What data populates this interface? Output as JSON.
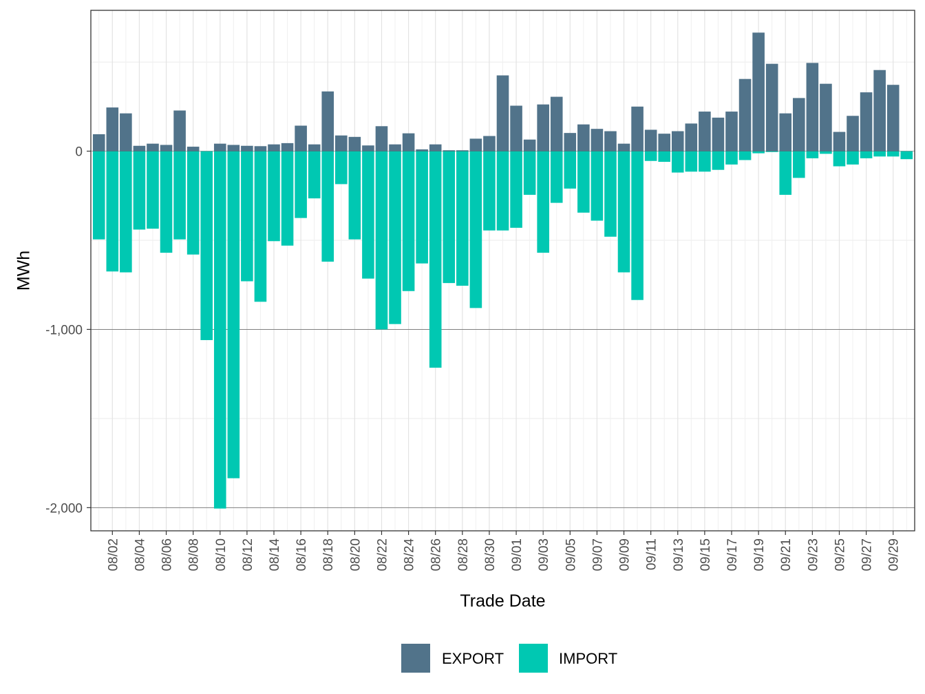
{
  "chart_data": {
    "type": "bar",
    "stacked": "diverging",
    "title": "",
    "xlabel": "Trade Date",
    "ylabel": "MWh",
    "ylim": [
      -2130,
      790
    ],
    "y_ticks": [
      {
        "value": 0,
        "label": "0"
      },
      {
        "value": -1000,
        "label": "-1,000"
      },
      {
        "value": -2000,
        "label": "-2,000"
      }
    ],
    "categories": [
      "08/01",
      "08/02",
      "08/03",
      "08/04",
      "08/05",
      "08/06",
      "08/07",
      "08/08",
      "08/09",
      "08/10",
      "08/11",
      "08/12",
      "08/13",
      "08/14",
      "08/15",
      "08/16",
      "08/17",
      "08/18",
      "08/19",
      "08/20",
      "08/21",
      "08/22",
      "08/23",
      "08/24",
      "08/25",
      "08/26",
      "08/27",
      "08/28",
      "08/29",
      "08/30",
      "08/31",
      "09/01",
      "09/02",
      "09/03",
      "09/04",
      "09/05",
      "09/06",
      "09/07",
      "09/08",
      "09/09",
      "09/10",
      "09/11",
      "09/12",
      "09/13",
      "09/14",
      "09/15",
      "09/16",
      "09/17",
      "09/18",
      "09/19",
      "09/20",
      "09/21",
      "09/22",
      "09/23",
      "09/24",
      "09/25",
      "09/26",
      "09/27",
      "09/28",
      "09/29",
      "09/30"
    ],
    "x_tick_labels": [
      "08/02",
      "08/04",
      "08/06",
      "08/08",
      "08/10",
      "08/12",
      "08/14",
      "08/16",
      "08/18",
      "08/20",
      "08/22",
      "08/24",
      "08/26",
      "08/28",
      "08/30",
      "09/01",
      "09/03",
      "09/05",
      "09/07",
      "09/09",
      "09/11",
      "09/13",
      "09/15",
      "09/17",
      "09/19",
      "09/21",
      "09/23",
      "09/25",
      "09/27",
      "09/29"
    ],
    "series": [
      {
        "name": "EXPORT",
        "color": "#51738a",
        "values": [
          95,
          245,
          212,
          30,
          42,
          35,
          228,
          25,
          0,
          42,
          35,
          30,
          28,
          38,
          45,
          143,
          38,
          335,
          88,
          80,
          32,
          140,
          38,
          100,
          10,
          38,
          5,
          5,
          70,
          85,
          425,
          255,
          65,
          262,
          305,
          102,
          150,
          125,
          112,
          42,
          250,
          120,
          98,
          112,
          155,
          222,
          188,
          222,
          405,
          665,
          490,
          212,
          298,
          495,
          378,
          108,
          198,
          330,
          455,
          372,
          0
        ],
        "note": "positive values (above zero)"
      },
      {
        "name": "IMPORT",
        "color": "#00c8b2",
        "values": [
          -495,
          -675,
          -680,
          -440,
          -435,
          -570,
          -495,
          -580,
          -1060,
          -2005,
          -1835,
          -730,
          -845,
          -505,
          -530,
          -375,
          -265,
          -620,
          -185,
          -495,
          -715,
          -1000,
          -970,
          -785,
          -630,
          -1215,
          -740,
          -755,
          -880,
          -445,
          -445,
          -430,
          -245,
          -570,
          -290,
          -210,
          -345,
          -390,
          -480,
          -680,
          -835,
          -55,
          -60,
          -120,
          -115,
          -115,
          -105,
          -75,
          -50,
          -12,
          -5,
          -245,
          -150,
          -40,
          -15,
          -85,
          -75,
          -40,
          -30,
          -30,
          -45
        ],
        "note": "negative values (below zero)"
      }
    ],
    "legend": {
      "position": "bottom",
      "items": [
        "EXPORT",
        "IMPORT"
      ]
    },
    "grid": true
  }
}
